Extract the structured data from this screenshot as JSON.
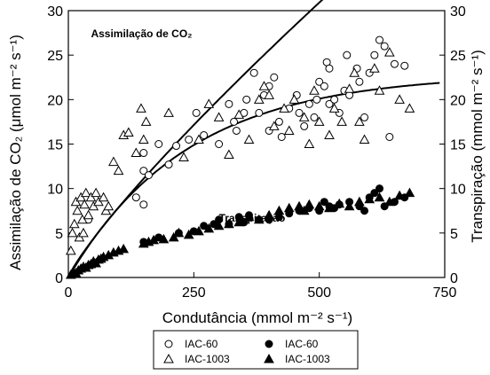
{
  "chart_data": {
    "type": "scatter",
    "xlabel": "Condutância (mmol m⁻² s⁻¹)",
    "ylabel_left": "Assimilação de CO₂ (μmol m⁻² s⁻¹)",
    "ylabel_right": "Transpiração (mmol m⁻² s⁻¹)",
    "xlim": [
      0,
      750
    ],
    "ylim": [
      0,
      30
    ],
    "ylim_right": [
      0,
      30
    ],
    "xticks": [
      "0",
      "250",
      "500",
      "750"
    ],
    "yticks": [
      "0",
      "5",
      "10",
      "15",
      "20",
      "25",
      "30"
    ],
    "yticks_right": [
      "0",
      "5",
      "10",
      "15",
      "20",
      "25",
      "30"
    ],
    "annotations": [
      {
        "text": "Assimilação de CO₂",
        "x": 45,
        "y": 27
      },
      {
        "text": "Transpiração",
        "x": 300,
        "y": 6.3
      }
    ],
    "legend": {
      "position": "bottom-center",
      "entries": [
        {
          "label": "IAC-60",
          "marker": "open-circle",
          "column": 0
        },
        {
          "label": "IAC-1003",
          "marker": "open-triangle",
          "column": 0
        },
        {
          "label": "IAC-60",
          "marker": "filled-circle",
          "column": 1
        },
        {
          "label": "IAC-1003",
          "marker": "filled-triangle",
          "column": 1
        }
      ]
    },
    "series": [
      {
        "label": "IAC-60",
        "group": "assimilation",
        "marker": "open-circle",
        "points": [
          [
            40,
            6.5
          ],
          [
            135,
            9
          ],
          [
            150,
            8.2
          ],
          [
            150,
            12
          ],
          [
            150,
            14
          ],
          [
            160,
            11.5
          ],
          [
            180,
            15
          ],
          [
            200,
            12.7
          ],
          [
            215,
            14.8
          ],
          [
            240,
            15.5
          ],
          [
            255,
            18.5
          ],
          [
            270,
            16
          ],
          [
            300,
            15
          ],
          [
            320,
            19.5
          ],
          [
            330,
            17.5
          ],
          [
            335,
            16.5
          ],
          [
            350,
            18.5
          ],
          [
            355,
            20
          ],
          [
            370,
            23
          ],
          [
            380,
            18.5
          ],
          [
            390,
            20.5
          ],
          [
            400,
            21.5
          ],
          [
            400,
            16.5
          ],
          [
            410,
            22.5
          ],
          [
            420,
            17.5
          ],
          [
            425,
            15.8
          ],
          [
            440,
            19
          ],
          [
            455,
            20.5
          ],
          [
            460,
            18.5
          ],
          [
            470,
            17
          ],
          [
            480,
            19.5
          ],
          [
            490,
            18
          ],
          [
            495,
            20
          ],
          [
            500,
            22
          ],
          [
            510,
            21.5
          ],
          [
            515,
            24.2
          ],
          [
            520,
            23.5
          ],
          [
            520,
            19.5
          ],
          [
            530,
            20
          ],
          [
            540,
            18.5
          ],
          [
            550,
            21
          ],
          [
            555,
            25
          ],
          [
            560,
            20.5
          ],
          [
            575,
            23.5
          ],
          [
            580,
            22
          ],
          [
            590,
            18
          ],
          [
            600,
            23
          ],
          [
            610,
            25
          ],
          [
            620,
            26.7
          ],
          [
            630,
            26
          ],
          [
            640,
            15.8
          ],
          [
            650,
            24
          ],
          [
            670,
            23.8
          ]
        ]
      },
      {
        "label": "IAC-1003",
        "group": "assimilation",
        "marker": "open-triangle",
        "points": [
          [
            5,
            3
          ],
          [
            8,
            5
          ],
          [
            12,
            6
          ],
          [
            15,
            8.5
          ],
          [
            18,
            7.5
          ],
          [
            22,
            4.5
          ],
          [
            25,
            9
          ],
          [
            28,
            6.5
          ],
          [
            30,
            5
          ],
          [
            32,
            8.2
          ],
          [
            35,
            9.5
          ],
          [
            40,
            7
          ],
          [
            45,
            9
          ],
          [
            50,
            8
          ],
          [
            55,
            9.5
          ],
          [
            60,
            8.5
          ],
          [
            70,
            9
          ],
          [
            75,
            7.5
          ],
          [
            80,
            8
          ],
          [
            90,
            13
          ],
          [
            100,
            12
          ],
          [
            110,
            16
          ],
          [
            120,
            16.3
          ],
          [
            135,
            14
          ],
          [
            145,
            19
          ],
          [
            150,
            15.5
          ],
          [
            155,
            17.5
          ],
          [
            200,
            18.5
          ],
          [
            230,
            13.5
          ],
          [
            260,
            15.5
          ],
          [
            280,
            19.5
          ],
          [
            300,
            18
          ],
          [
            320,
            13.8
          ],
          [
            340,
            18.3
          ],
          [
            360,
            15.5
          ],
          [
            380,
            20
          ],
          [
            390,
            21.5
          ],
          [
            400,
            20.5
          ],
          [
            410,
            17
          ],
          [
            430,
            19
          ],
          [
            440,
            16.5
          ],
          [
            450,
            20
          ],
          [
            470,
            18
          ],
          [
            480,
            15
          ],
          [
            490,
            21
          ],
          [
            500,
            17.5
          ],
          [
            520,
            16
          ],
          [
            530,
            19
          ],
          [
            545,
            17.5
          ],
          [
            560,
            21.2
          ],
          [
            570,
            23
          ],
          [
            580,
            17.5
          ],
          [
            590,
            15.5
          ],
          [
            610,
            23.5
          ],
          [
            620,
            21
          ],
          [
            640,
            25.3
          ],
          [
            660,
            20
          ],
          [
            680,
            19
          ]
        ]
      },
      {
        "label": "IAC-60",
        "group": "transpiration",
        "marker": "filled-circle",
        "points": [
          [
            150,
            4
          ],
          [
            180,
            4.5
          ],
          [
            220,
            5
          ],
          [
            250,
            5.2
          ],
          [
            270,
            5.8
          ],
          [
            290,
            6
          ],
          [
            300,
            6.5
          ],
          [
            320,
            6
          ],
          [
            340,
            6.8
          ],
          [
            350,
            6.2
          ],
          [
            360,
            7
          ],
          [
            380,
            6.5
          ],
          [
            400,
            6.5
          ],
          [
            420,
            6.8
          ],
          [
            440,
            7.2
          ],
          [
            460,
            7.5
          ],
          [
            480,
            7.8
          ],
          [
            500,
            7.5
          ],
          [
            510,
            8.5
          ],
          [
            520,
            8
          ],
          [
            530,
            7.8
          ],
          [
            540,
            8.2
          ],
          [
            560,
            8.5
          ],
          [
            580,
            8
          ],
          [
            590,
            7.5
          ],
          [
            600,
            9
          ],
          [
            610,
            9.5
          ],
          [
            620,
            10
          ],
          [
            630,
            8
          ],
          [
            650,
            8.5
          ],
          [
            670,
            9
          ]
        ]
      },
      {
        "label": "IAC-1003",
        "group": "transpiration",
        "marker": "filled-triangle",
        "points": [
          [
            5,
            0.3
          ],
          [
            10,
            0.6
          ],
          [
            15,
            0.5
          ],
          [
            20,
            0.8
          ],
          [
            25,
            1
          ],
          [
            30,
            1.2
          ],
          [
            35,
            1.1
          ],
          [
            40,
            1.4
          ],
          [
            45,
            1.5
          ],
          [
            50,
            1.8
          ],
          [
            55,
            1.6
          ],
          [
            60,
            2
          ],
          [
            65,
            2.1
          ],
          [
            70,
            2.3
          ],
          [
            80,
            2.5
          ],
          [
            90,
            2.8
          ],
          [
            100,
            3
          ],
          [
            110,
            3.2
          ],
          [
            150,
            3.8
          ],
          [
            160,
            4
          ],
          [
            170,
            4.2
          ],
          [
            190,
            4.3
          ],
          [
            210,
            4.5
          ],
          [
            220,
            5
          ],
          [
            240,
            4.8
          ],
          [
            260,
            5.2
          ],
          [
            280,
            5.5
          ],
          [
            300,
            5.8
          ],
          [
            320,
            6
          ],
          [
            340,
            6.2
          ],
          [
            360,
            6.8
          ],
          [
            380,
            6.5
          ],
          [
            400,
            7
          ],
          [
            420,
            7.5
          ],
          [
            440,
            7.8
          ],
          [
            460,
            8
          ],
          [
            470,
            7.5
          ],
          [
            480,
            8.2
          ],
          [
            500,
            8
          ],
          [
            520,
            7.8
          ],
          [
            540,
            8.3
          ],
          [
            560,
            8
          ],
          [
            580,
            8.5
          ],
          [
            600,
            8.8
          ],
          [
            620,
            9
          ],
          [
            640,
            8.5
          ],
          [
            660,
            9.2
          ],
          [
            680,
            9.5
          ]
        ]
      }
    ],
    "curves": [
      {
        "group": "assimilation",
        "model": "exponential-rise",
        "ymax": 22.9,
        "k": 0.0042,
        "x": [
          0,
          740
        ]
      },
      {
        "group": "transpiration",
        "model": "power",
        "a": 0.157,
        "b": 0.85,
        "x": [
          0,
          740
        ]
      }
    ]
  }
}
